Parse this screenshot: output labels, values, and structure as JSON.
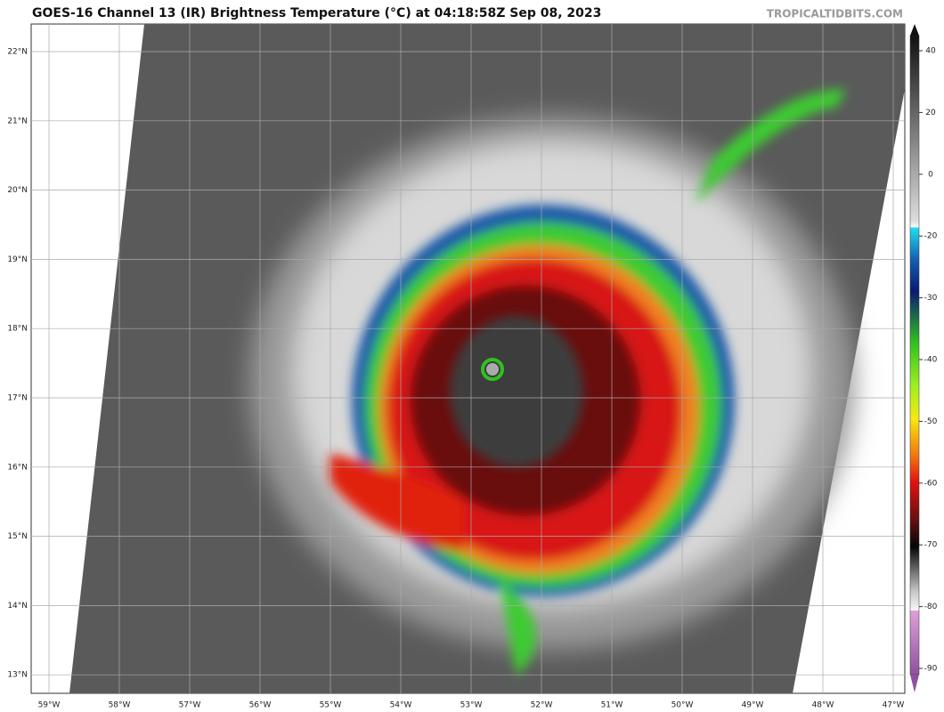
{
  "header": {
    "title": "GOES-16 Channel 13 (IR) Brightness Temperature (°C) at 04:18:58Z Sep 08, 2023",
    "credit": "TROPICALTIDBITS.COM"
  },
  "map": {
    "lat_labels": [
      "22°N",
      "21°N",
      "20°N",
      "19°N",
      "18°N",
      "17°N",
      "16°N",
      "15°N",
      "14°N",
      "13°N"
    ],
    "lon_labels": [
      "59°W",
      "58°W",
      "57°W",
      "56°W",
      "55°W",
      "54°W",
      "53°W",
      "52°W",
      "51°W",
      "50°W",
      "49°W",
      "48°W",
      "47°W"
    ]
  },
  "colorbar": {
    "ticks": [
      40,
      20,
      0,
      -20,
      -30,
      -40,
      -50,
      -60,
      -70,
      -80,
      -90
    ]
  }
}
